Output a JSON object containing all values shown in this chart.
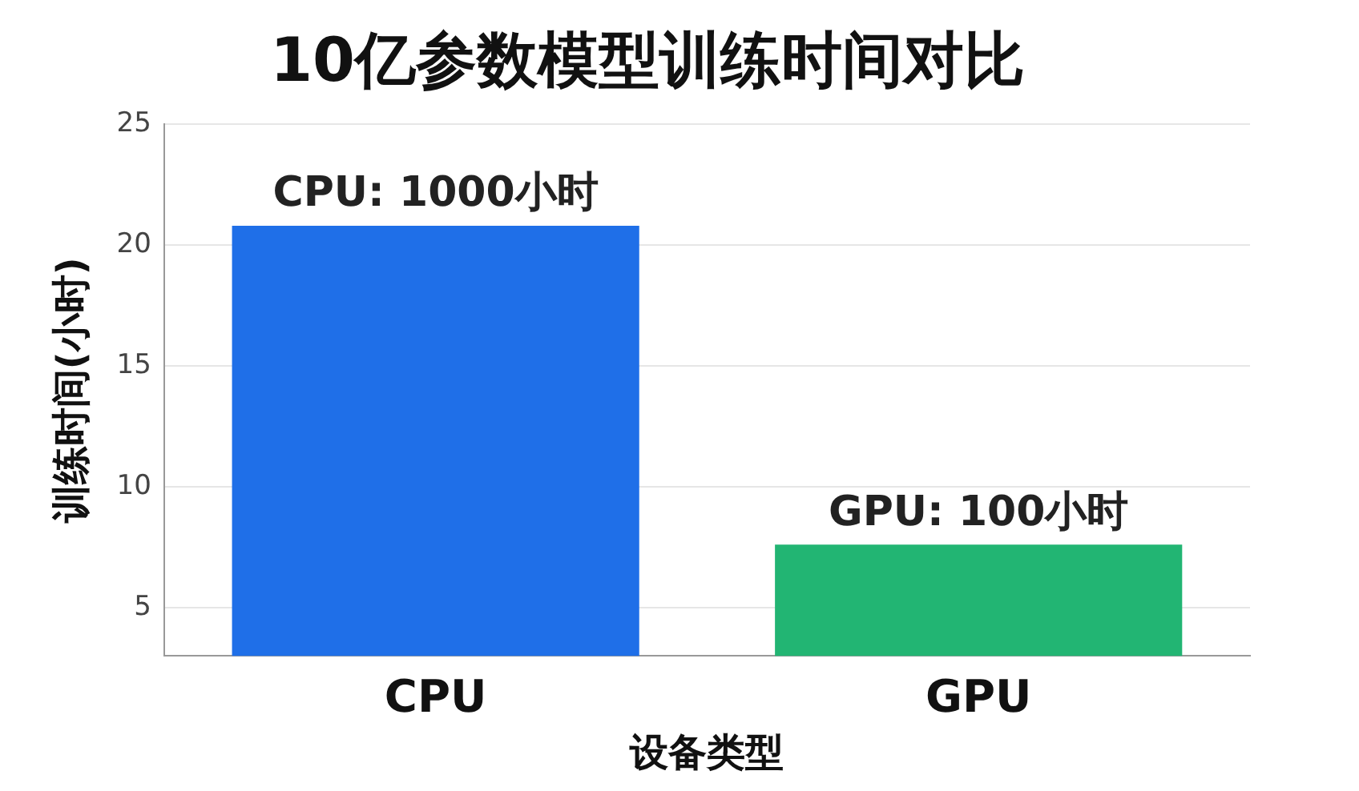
{
  "chart_data": {
    "type": "bar",
    "title": "10亿参数模型训练时间对比",
    "xlabel": "设备类型",
    "ylabel": "训练时间(小时)",
    "categories": [
      "CPU",
      "GPU"
    ],
    "values": [
      20.8,
      7.6
    ],
    "colors": [
      "#1f6fe8",
      "#22b573"
    ],
    "ylim": [
      3,
      25
    ],
    "yticks": [
      5,
      10,
      15,
      20,
      25
    ],
    "grid": "y",
    "legend": false,
    "annotations": [
      {
        "text": "CPU: 1000小时",
        "x": "CPU",
        "y": 20.8
      },
      {
        "text": "GPU: 100小时",
        "x": "GPU",
        "y": 7.6
      }
    ]
  }
}
